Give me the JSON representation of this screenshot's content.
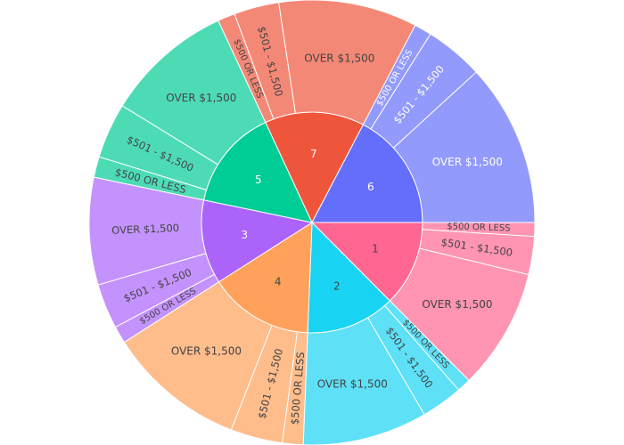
{
  "chart_data": {
    "type": "sunburst",
    "title": "",
    "center": [
      350,
      250
    ],
    "inner_radius": 124,
    "outer_radius": 250,
    "parents": [
      {
        "label": "1",
        "color": "#FF6692",
        "children": [
          {
            "label": "$500 OR LESS",
            "value": 2.0
          },
          {
            "label": "$501 - $1,500",
            "value": 5.5
          },
          {
            "label": "OVER $1,500",
            "value": 17.5
          }
        ]
      },
      {
        "label": "2",
        "color": "#19D3F3",
        "children": [
          {
            "label": "$500 OR LESS",
            "value": 2.0
          },
          {
            "label": "$501 - $1,500",
            "value": 6.0
          },
          {
            "label": "OVER $1,500",
            "value": 18.0
          }
        ]
      },
      {
        "label": "4",
        "color": "#FFA15A",
        "children": [
          {
            "label": "$500 OR LESS",
            "value": 3.0
          },
          {
            "label": "$501 - $1,500",
            "value": 7.5
          },
          {
            "label": "OVER $1,500",
            "value": 20.0
          }
        ]
      },
      {
        "label": "3",
        "color": "#AB63FA",
        "children": [
          {
            "label": "$500 OR LESS",
            "value": 2.5
          },
          {
            "label": "$501 - $1,500",
            "value": 6.5
          },
          {
            "label": "OVER $1,500",
            "value": 15.5
          }
        ]
      },
      {
        "label": "5",
        "color": "#00CC96",
        "children": [
          {
            "label": "$500 OR LESS",
            "value": 3.0
          },
          {
            "label": "$501 - $1,500",
            "value": 8.0
          },
          {
            "label": "OVER $1,500",
            "value": 18.5
          }
        ]
      },
      {
        "label": "7",
        "color": "#EF553B",
        "children": [
          {
            "label": "$500 OR LESS",
            "value": 2.5
          },
          {
            "label": "$501 - $1,500",
            "value": 6.5
          },
          {
            "label": "OVER $1,500",
            "value": 20.0
          }
        ]
      },
      {
        "label": "6",
        "color": "#636EFA",
        "children": [
          {
            "label": "$500 OR LESS",
            "value": 2.5
          },
          {
            "label": "$501 - $1,500",
            "value": 8.5
          },
          {
            "label": "OVER $1,500",
            "value": 23.5
          }
        ]
      }
    ]
  }
}
